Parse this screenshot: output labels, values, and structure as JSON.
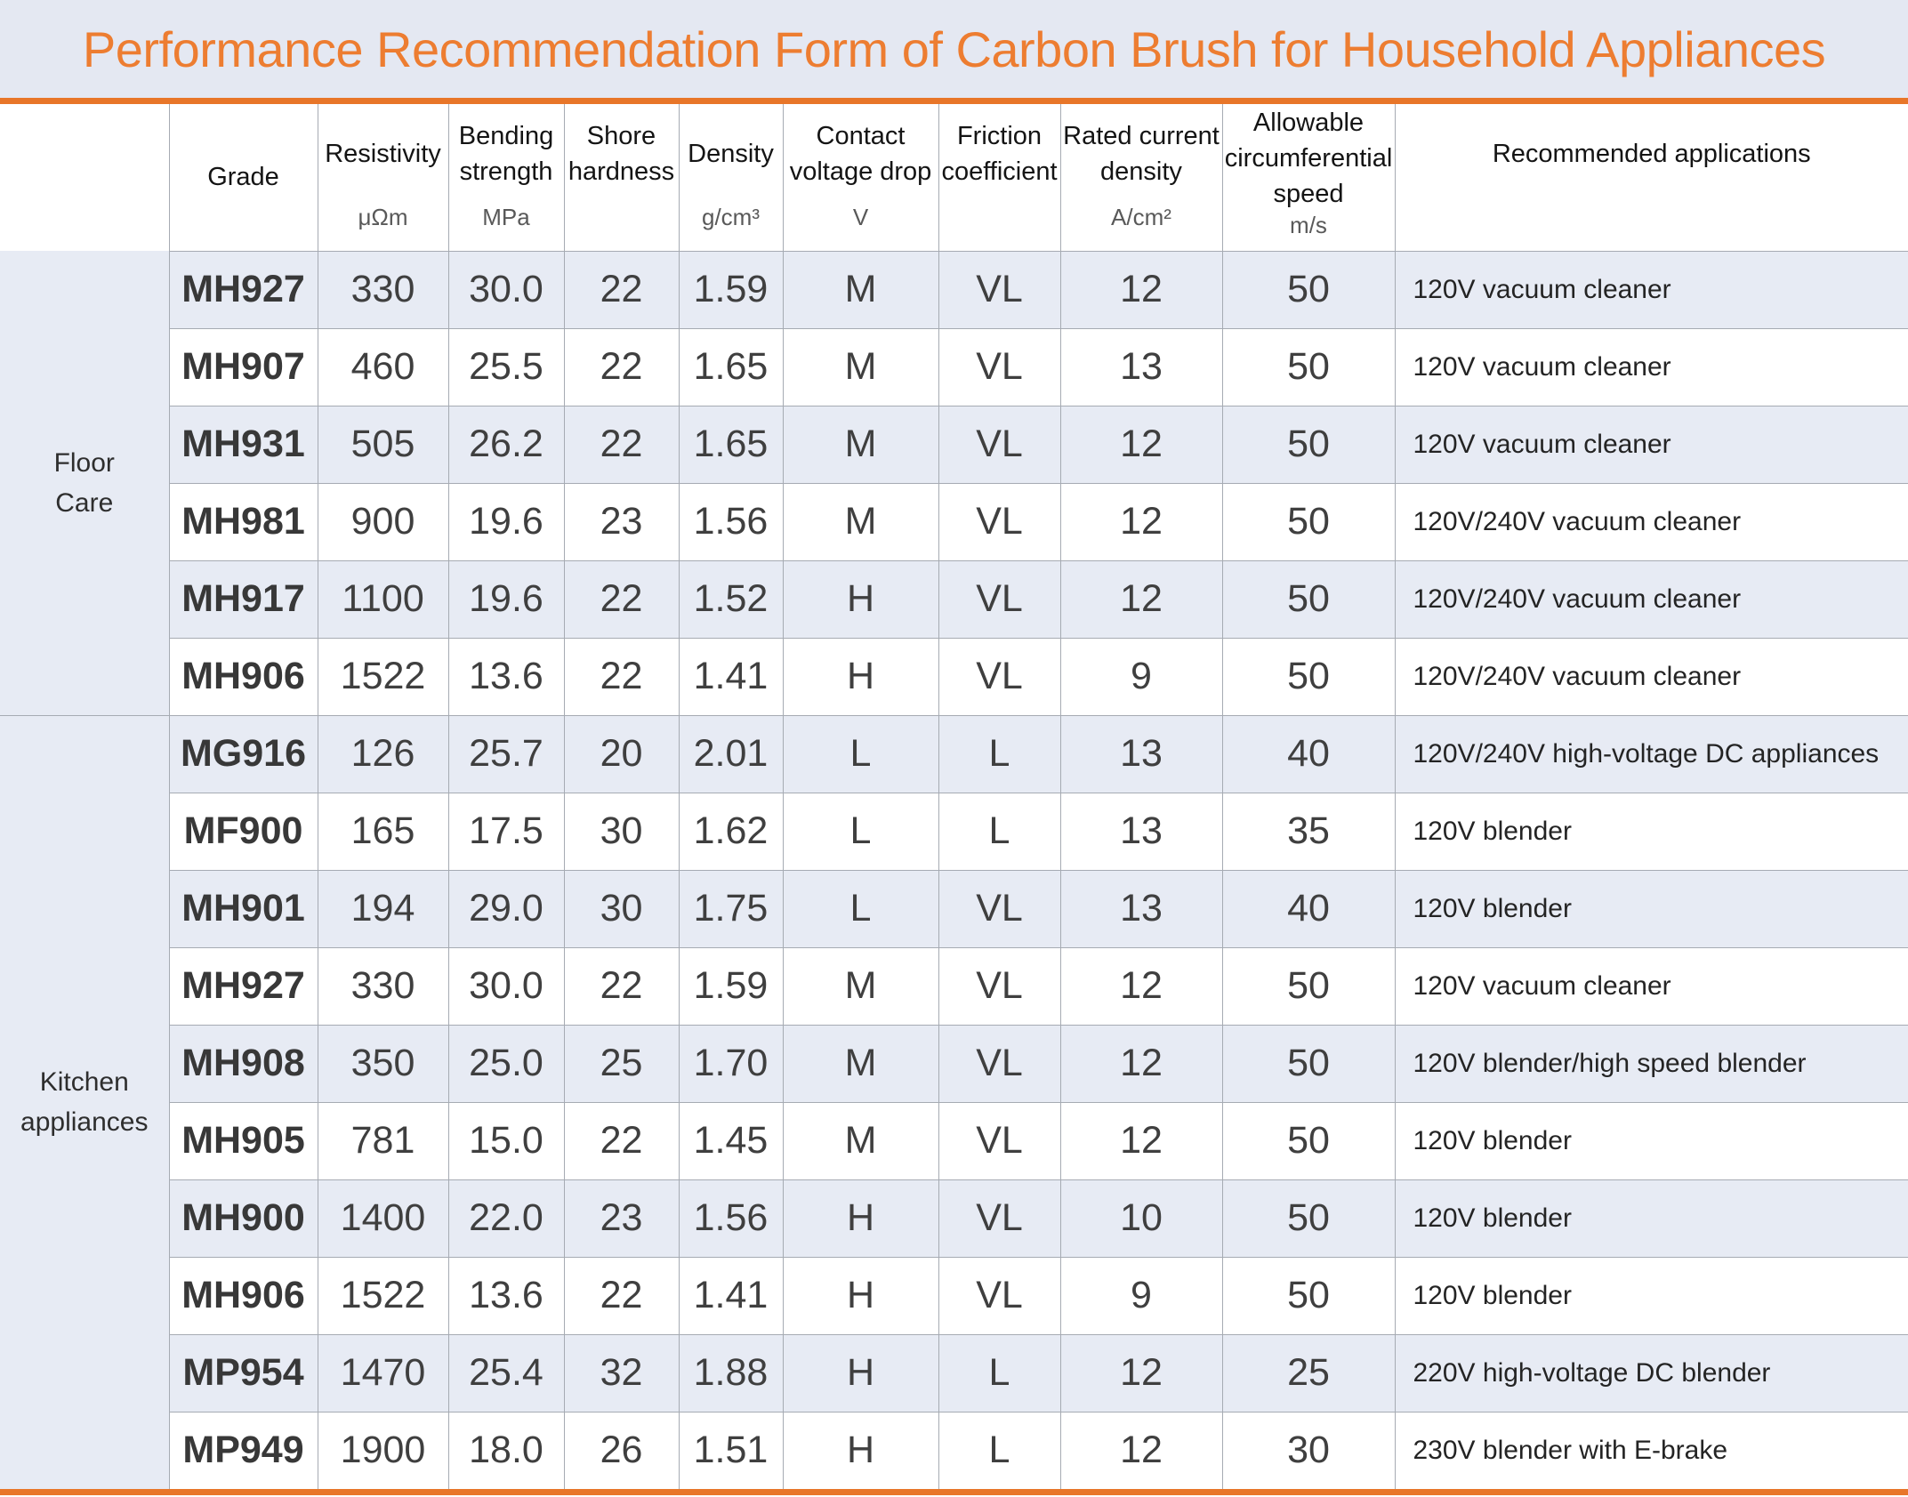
{
  "title": "Performance Recommendation Form of Carbon Brush for Household Appliances",
  "theme": {
    "accent_orange": "#e87629",
    "title_text_orange": "#ed7d31",
    "title_bar_bg": "#e4e8f2",
    "band_row_bg": "#e7ebf4",
    "grid_line": "#a6abb3"
  },
  "table": {
    "columns": [
      {
        "key": "grade",
        "label": "Grade",
        "unit": null
      },
      {
        "key": "resistivity",
        "label": "Resistivity",
        "unit": "μΩm"
      },
      {
        "key": "bending_strength",
        "label": "Bending strength",
        "unit": "MPa"
      },
      {
        "key": "shore_hardness",
        "label": "Shore hardness",
        "unit": ""
      },
      {
        "key": "density",
        "label": "Density",
        "unit": "g/cm³"
      },
      {
        "key": "contact_voltage_drop",
        "label": "Contact voltage drop",
        "unit": "V"
      },
      {
        "key": "friction_coefficient",
        "label": "Friction coefficient",
        "unit": ""
      },
      {
        "key": "rated_current_density",
        "label": "Rated current density",
        "unit": "A/cm²"
      },
      {
        "key": "allowable_circumferential_speed",
        "label": "Allowable circumferential speed",
        "unit": "m/s"
      },
      {
        "key": "recommended_applications",
        "label": "Recommended applications",
        "unit": ""
      }
    ],
    "sections": [
      {
        "category_lines": [
          "Floor",
          "Care"
        ],
        "rows": [
          [
            "MH927",
            "330",
            "30.0",
            "22",
            "1.59",
            "M",
            "VL",
            "12",
            "50",
            "120V vacuum cleaner"
          ],
          [
            "MH907",
            "460",
            "25.5",
            "22",
            "1.65",
            "M",
            "VL",
            "13",
            "50",
            "120V vacuum cleaner"
          ],
          [
            "MH931",
            "505",
            "26.2",
            "22",
            "1.65",
            "M",
            "VL",
            "12",
            "50",
            "120V vacuum cleaner"
          ],
          [
            "MH981",
            "900",
            "19.6",
            "23",
            "1.56",
            "M",
            "VL",
            "12",
            "50",
            "120V/240V vacuum cleaner"
          ],
          [
            "MH917",
            "1100",
            "19.6",
            "22",
            "1.52",
            "H",
            "VL",
            "12",
            "50",
            "120V/240V vacuum cleaner"
          ],
          [
            "MH906",
            "1522",
            "13.6",
            "22",
            "1.41",
            "H",
            "VL",
            "9",
            "50",
            "120V/240V vacuum cleaner"
          ]
        ]
      },
      {
        "category_lines": [
          "Kitchen",
          "appliances"
        ],
        "rows": [
          [
            "MG916",
            "126",
            "25.7",
            "20",
            "2.01",
            "L",
            "L",
            "13",
            "40",
            "120V/240V high-voltage DC appliances"
          ],
          [
            "MF900",
            "165",
            "17.5",
            "30",
            "1.62",
            "L",
            "L",
            "13",
            "35",
            "120V blender"
          ],
          [
            "MH901",
            "194",
            "29.0",
            "30",
            "1.75",
            "L",
            "VL",
            "13",
            "40",
            "120V blender"
          ],
          [
            "MH927",
            "330",
            "30.0",
            "22",
            "1.59",
            "M",
            "VL",
            "12",
            "50",
            "120V vacuum cleaner"
          ],
          [
            "MH908",
            "350",
            "25.0",
            "25",
            "1.70",
            "M",
            "VL",
            "12",
            "50",
            "120V blender/high speed blender"
          ],
          [
            "MH905",
            "781",
            "15.0",
            "22",
            "1.45",
            "M",
            "VL",
            "12",
            "50",
            "120V blender"
          ],
          [
            "MH900",
            "1400",
            "22.0",
            "23",
            "1.56",
            "H",
            "VL",
            "10",
            "50",
            "120V blender"
          ],
          [
            "MH906",
            "1522",
            "13.6",
            "22",
            "1.41",
            "H",
            "VL",
            "9",
            "50",
            "120V blender"
          ],
          [
            "MP954",
            "1470",
            "25.4",
            "32",
            "1.88",
            "H",
            "L",
            "12",
            "25",
            "220V high-voltage DC blender"
          ],
          [
            "MP949",
            "1900",
            "18.0",
            "26",
            "1.51",
            "H",
            "L",
            "12",
            "30",
            "230V blender with E-brake"
          ]
        ]
      }
    ]
  }
}
